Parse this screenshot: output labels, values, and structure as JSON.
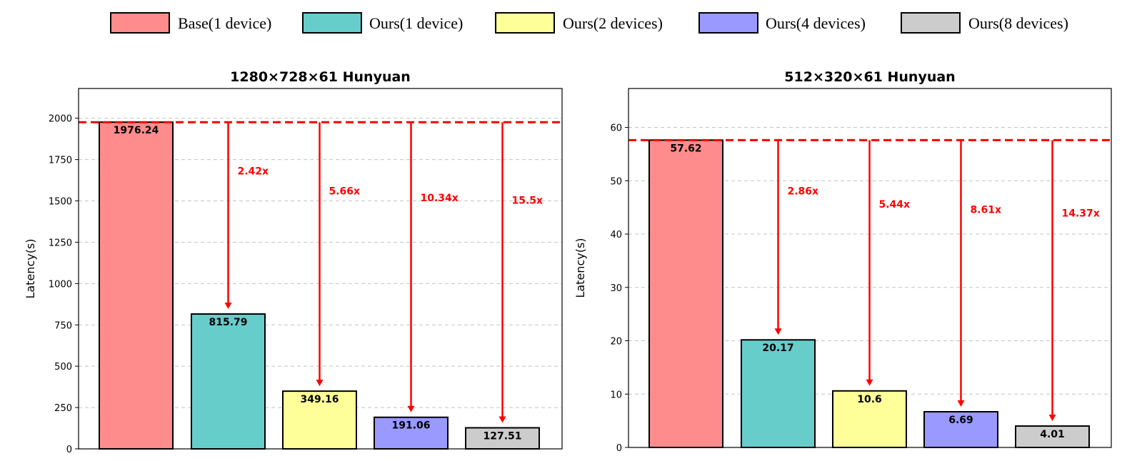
{
  "legend": [
    {
      "label": "Base(1 device)",
      "color": "#ff8c8c"
    },
    {
      "label": "Ours(1 device)",
      "color": "#66cdcb"
    },
    {
      "label": "Ours(2 devices)",
      "color": "#ffff99"
    },
    {
      "label": "Ours(4 devices)",
      "color": "#9999ff"
    },
    {
      "label": "Ours(8 devices)",
      "color": "#cccccc"
    }
  ],
  "chart_data": [
    {
      "type": "bar",
      "title": "1280×728×61 Hunyuan",
      "ylabel": "Latency(s)",
      "xlabel": "",
      "categories": [
        "Base(1 device)",
        "Ours(1 device)",
        "Ours(2 devices)",
        "Ours(4 devices)",
        "Ours(8 devices)"
      ],
      "values": [
        1976.24,
        815.79,
        349.16,
        191.06,
        127.51
      ],
      "value_labels": [
        "1976.24",
        "815.79",
        "349.16",
        "191.06",
        "127.51"
      ],
      "speedups": [
        "2.42x",
        "5.66x",
        "10.34x",
        "15.5x"
      ],
      "ylim": [
        0,
        2180
      ],
      "yticks": [
        0,
        250,
        500,
        750,
        1000,
        1250,
        1500,
        1750,
        2000
      ],
      "baseline": 1976.24,
      "grid": "y-dashed"
    },
    {
      "type": "bar",
      "title": "512×320×61 Hunyuan",
      "ylabel": "Latency(s)",
      "xlabel": "",
      "categories": [
        "Base(1 device)",
        "Ours(1 device)",
        "Ours(2 devices)",
        "Ours(4 devices)",
        "Ours(8 devices)"
      ],
      "values": [
        57.62,
        20.17,
        10.6,
        6.69,
        4.01
      ],
      "value_labels": [
        "57.62",
        "20.17",
        "10.6",
        "6.69",
        "4.01"
      ],
      "speedups": [
        "2.86x",
        "5.44x",
        "8.61x",
        "14.37x"
      ],
      "ylim": [
        0,
        67.3
      ],
      "yticks": [
        0,
        10,
        20,
        30,
        40,
        50,
        60
      ],
      "baseline": 57.62,
      "grid": "y-dashed"
    }
  ]
}
